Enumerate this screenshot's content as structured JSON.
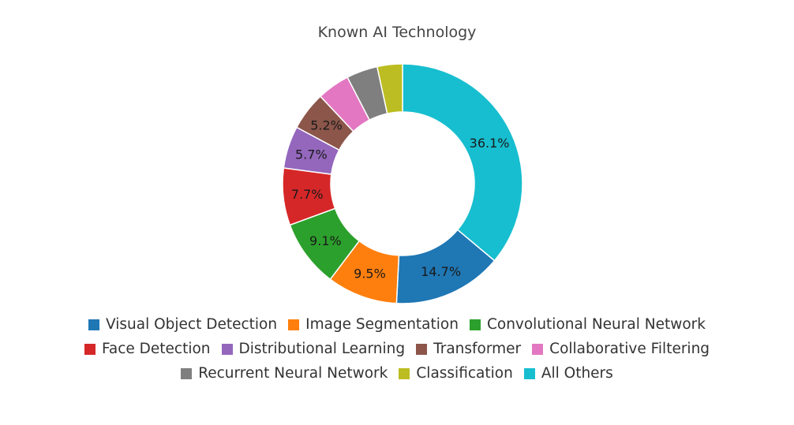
{
  "chart_data": {
    "type": "pie",
    "title": "Known AI Technology",
    "donut": true,
    "legend_position": "bottom",
    "slices": [
      {
        "label": "All Others",
        "value": 36.1,
        "display": "36.1%",
        "color": "#17becf"
      },
      {
        "label": "Visual Object Detection",
        "value": 14.7,
        "display": "14.7%",
        "color": "#1f77b4"
      },
      {
        "label": "Image Segmentation",
        "value": 9.5,
        "display": "9.5%",
        "color": "#ff7f0e"
      },
      {
        "label": "Convolutional Neural Network",
        "value": 9.1,
        "display": "9.1%",
        "color": "#2ca02c"
      },
      {
        "label": "Face Detection",
        "value": 7.7,
        "display": "7.7%",
        "color": "#d62728"
      },
      {
        "label": "Distributional Learning",
        "value": 5.7,
        "display": "5.7%",
        "color": "#9467bd"
      },
      {
        "label": "Transformer",
        "value": 5.2,
        "display": "5.2%",
        "color": "#8c564b"
      },
      {
        "label": "Collaborative Filtering",
        "value": 4.4,
        "display": "",
        "color": "#e377c2"
      },
      {
        "label": "Recurrent Neural Network",
        "value": 4.2,
        "display": "",
        "color": "#7f7f7f"
      },
      {
        "label": "Classification",
        "value": 3.4,
        "display": "",
        "color": "#bcbd22"
      }
    ],
    "legend_rows": [
      [
        "Visual Object Detection",
        "Image Segmentation",
        "Convolutional Neural Network"
      ],
      [
        "Face Detection",
        "Distributional Learning",
        "Transformer",
        "Collaborative Filtering"
      ],
      [
        "Recurrent Neural Network",
        "Classification",
        "All Others"
      ]
    ]
  }
}
